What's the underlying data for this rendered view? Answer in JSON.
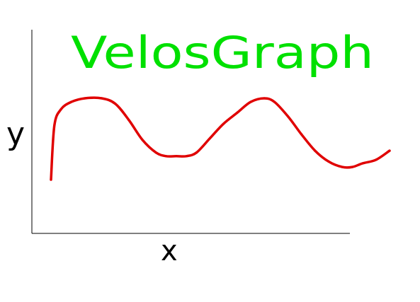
{
  "chart_data": {
    "type": "line",
    "title": "VelosGraph",
    "xlabel": "x",
    "ylabel": "y",
    "grid": false,
    "legend": "none",
    "x": [
      0.0,
      0.01,
      0.03,
      0.06,
      0.1,
      0.15,
      0.19,
      0.23,
      0.27,
      0.31,
      0.34,
      0.37,
      0.4,
      0.43,
      0.47,
      0.51,
      0.55,
      0.59,
      0.63,
      0.66,
      0.7,
      0.74,
      0.78,
      0.82,
      0.86,
      0.89,
      0.92,
      0.96,
      1.0
    ],
    "y": [
      0.25,
      0.55,
      0.64,
      0.68,
      0.7,
      0.7,
      0.67,
      0.58,
      0.47,
      0.4,
      0.38,
      0.38,
      0.38,
      0.4,
      0.48,
      0.56,
      0.62,
      0.68,
      0.7,
      0.68,
      0.6,
      0.5,
      0.41,
      0.35,
      0.32,
      0.32,
      0.34,
      0.36,
      0.41
    ],
    "line_color": "#e00000",
    "title_color": "#00e000"
  }
}
